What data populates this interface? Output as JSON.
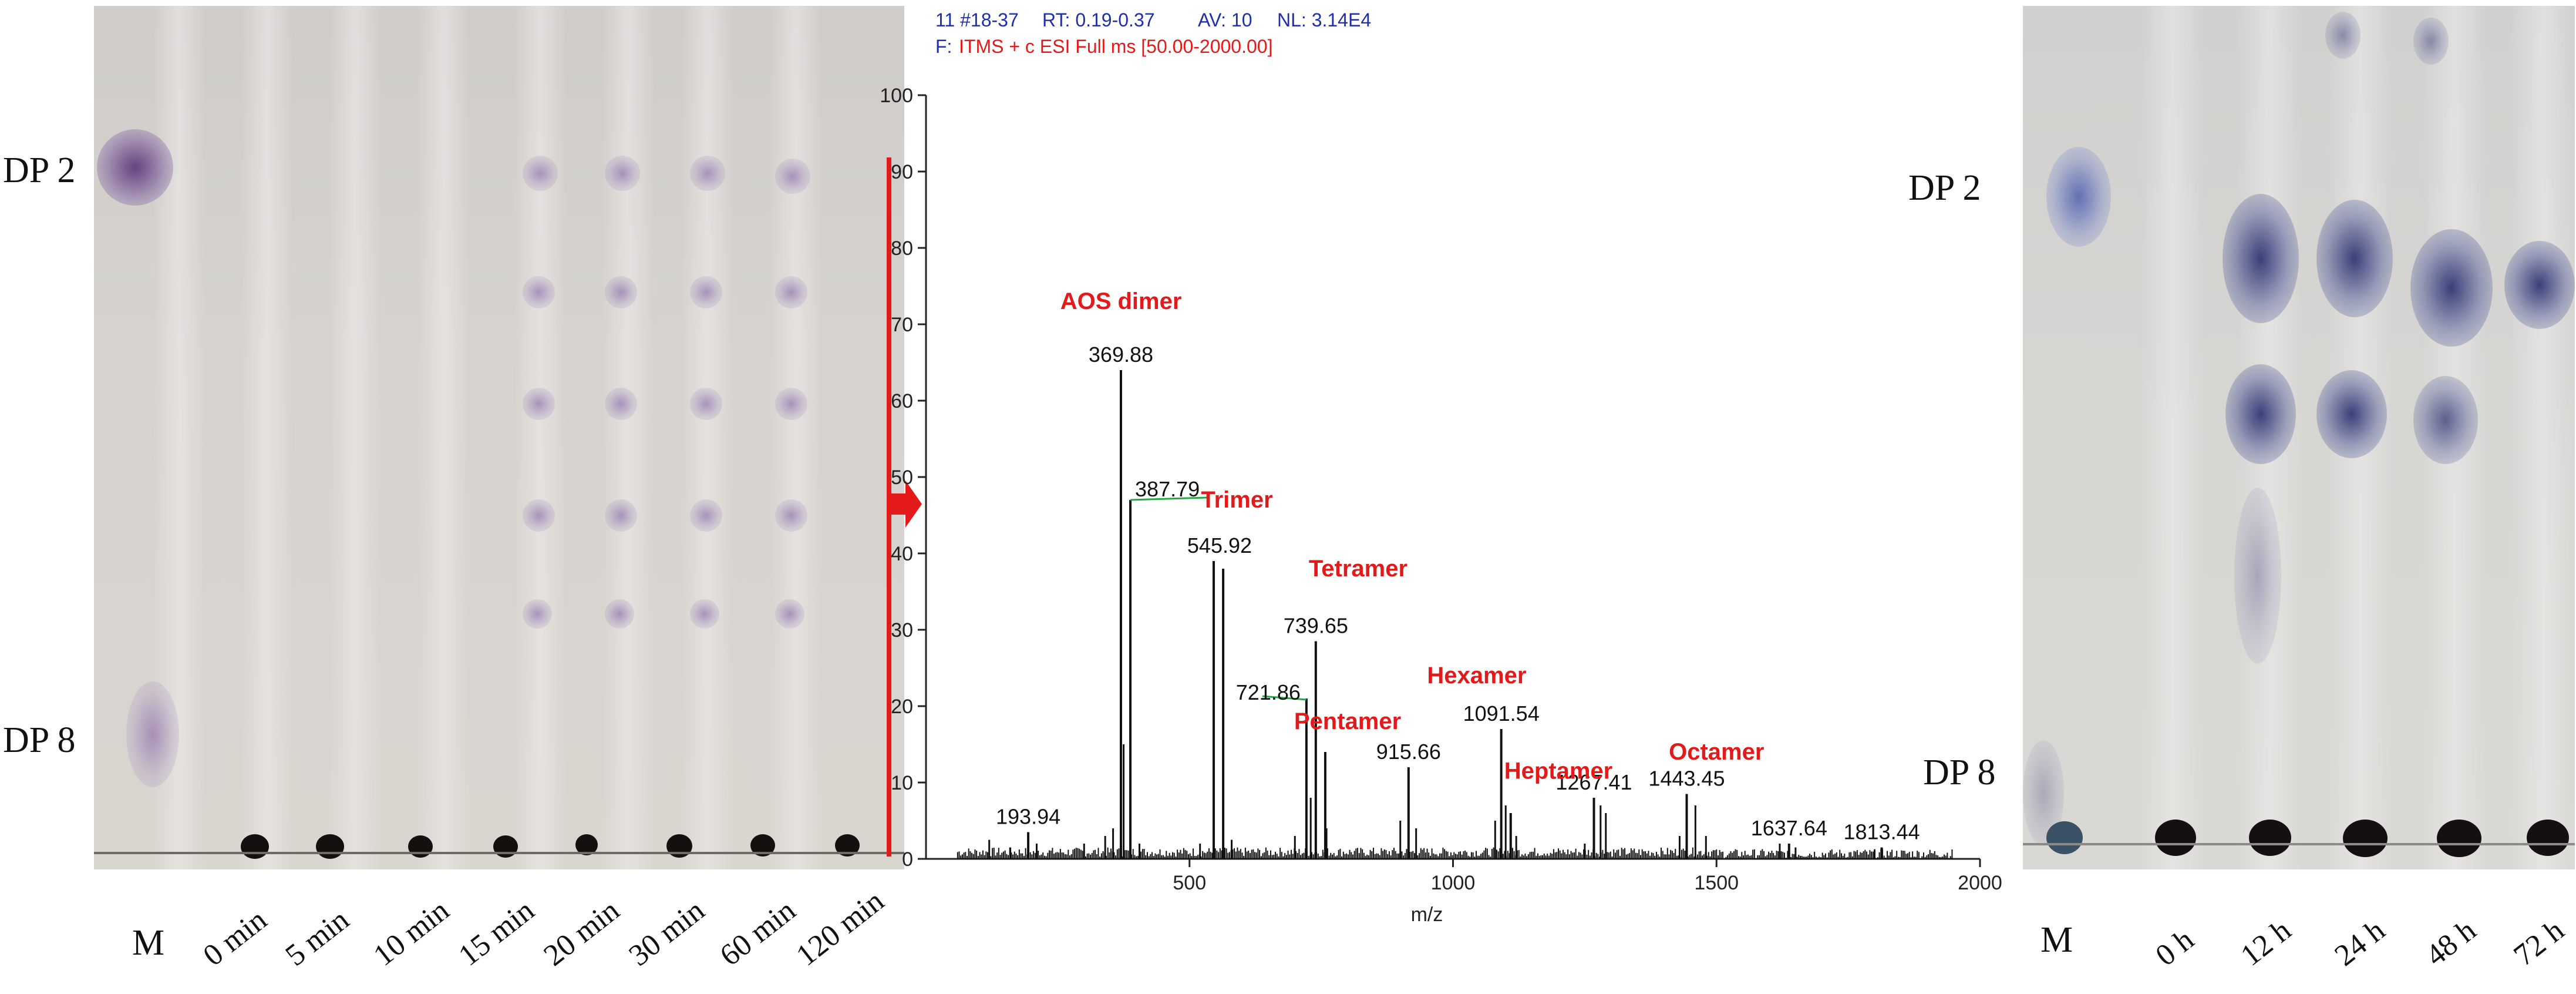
{
  "left_tlc": {
    "dp_top": "DP 2",
    "dp_bottom": "DP 8",
    "marker": "M",
    "lanes": [
      "0 min",
      "5 min",
      "10 min",
      "15 min",
      "20 min",
      "30 min",
      "60 min",
      "120 min"
    ]
  },
  "right_tlc": {
    "dp_top": "DP 2",
    "dp_bottom": "DP 8",
    "marker": "M",
    "lanes": [
      "0 h",
      "12 h",
      "24 h",
      "48 h",
      "72 h"
    ]
  },
  "spectrum_header": {
    "line1_a": "11 #18-37",
    "line1_b": "RT: 0.19-0.37",
    "line1_c": "AV: 10",
    "line1_d": "NL: 3.14E4",
    "line2_prefix": "F:",
    "line2_scan": "ITMS + c ESI Full ms [50.00-2000.00]"
  },
  "colors": {
    "annotation": "#e41a1a",
    "header_blue": "#1f2fa8",
    "arrow": "#e41a1a",
    "leader": "#22aa44"
  },
  "chart_data": {
    "type": "bar",
    "xlabel": "m/z",
    "ylabel": "",
    "xlim": [
      0,
      2000
    ],
    "ylim": [
      0,
      100
    ],
    "xticks": [
      500,
      1000,
      1500,
      2000
    ],
    "yticks": [
      0,
      10,
      20,
      30,
      40,
      50,
      60,
      70,
      80,
      90,
      100
    ],
    "peaks": [
      {
        "mz": 193.94,
        "intensity": 3.5,
        "label": "193.94"
      },
      {
        "mz": 369.88,
        "intensity": 64,
        "label": "369.88"
      },
      {
        "mz": 387.79,
        "intensity": 47,
        "label": "387.79"
      },
      {
        "mz": 545.92,
        "intensity": 39,
        "label": "545.92"
      },
      {
        "mz": 563.9,
        "intensity": 38,
        "label": ""
      },
      {
        "mz": 721.86,
        "intensity": 21,
        "label": "721.86"
      },
      {
        "mz": 739.65,
        "intensity": 28.5,
        "label": "739.65"
      },
      {
        "mz": 757.6,
        "intensity": 14,
        "label": ""
      },
      {
        "mz": 915.66,
        "intensity": 12,
        "label": "915.66"
      },
      {
        "mz": 1091.54,
        "intensity": 17,
        "label": "1091.54"
      },
      {
        "mz": 1109.5,
        "intensity": 6,
        "label": ""
      },
      {
        "mz": 1267.41,
        "intensity": 8,
        "label": "1267.41"
      },
      {
        "mz": 1443.45,
        "intensity": 8.5,
        "label": "1443.45"
      },
      {
        "mz": 1637.64,
        "intensity": 2,
        "label": "1637.64"
      },
      {
        "mz": 1813.44,
        "intensity": 1.5,
        "label": "1813.44"
      }
    ],
    "minor_peaks": [
      {
        "mz": 120,
        "intensity": 2.5
      },
      {
        "mz": 160,
        "intensity": 1.5
      },
      {
        "mz": 210,
        "intensity": 2
      },
      {
        "mz": 300,
        "intensity": 2
      },
      {
        "mz": 340,
        "intensity": 3
      },
      {
        "mz": 355,
        "intensity": 4
      },
      {
        "mz": 375,
        "intensity": 15
      },
      {
        "mz": 405,
        "intensity": 2
      },
      {
        "mz": 520,
        "intensity": 2
      },
      {
        "mz": 580,
        "intensity": 2.5
      },
      {
        "mz": 700,
        "intensity": 3
      },
      {
        "mz": 730,
        "intensity": 8
      },
      {
        "mz": 760,
        "intensity": 4
      },
      {
        "mz": 900,
        "intensity": 5
      },
      {
        "mz": 930,
        "intensity": 4
      },
      {
        "mz": 1080,
        "intensity": 5
      },
      {
        "mz": 1100,
        "intensity": 7
      },
      {
        "mz": 1120,
        "intensity": 3
      },
      {
        "mz": 1250,
        "intensity": 2
      },
      {
        "mz": 1280,
        "intensity": 7
      },
      {
        "mz": 1290,
        "intensity": 6
      },
      {
        "mz": 1430,
        "intensity": 3
      },
      {
        "mz": 1460,
        "intensity": 7
      },
      {
        "mz": 1480,
        "intensity": 3
      },
      {
        "mz": 1620,
        "intensity": 2
      },
      {
        "mz": 1650,
        "intensity": 1.5
      },
      {
        "mz": 1800,
        "intensity": 1.2
      }
    ],
    "annotations": [
      {
        "text": "AOS dimer",
        "mz": 370,
        "y": 72
      },
      {
        "text": "Trimer",
        "mz": 590,
        "y": 46
      },
      {
        "text": "Tetramer",
        "mz": 820,
        "y": 37
      },
      {
        "text": "Pentamer",
        "mz": 800,
        "y": 17
      },
      {
        "text": "Hexamer",
        "mz": 1045,
        "y": 23
      },
      {
        "text": "Heptamer",
        "mz": 1200,
        "y": 10.5
      },
      {
        "text": "Octamer",
        "mz": 1500,
        "y": 13
      }
    ]
  }
}
